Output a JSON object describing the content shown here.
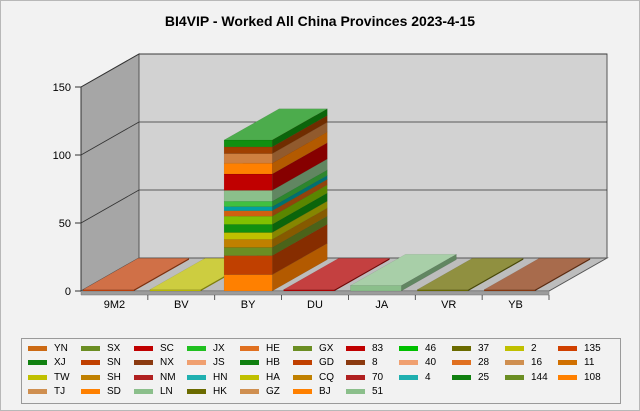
{
  "title": "BI4VIP - Worked All China Provinces 2023-4-15",
  "chart_data": {
    "type": "bar",
    "style": "stacked-3d",
    "title": "BI4VIP - Worked All China Provinces 2023-4-15",
    "xlabel": "",
    "ylabel": "",
    "ylim": [
      0,
      150
    ],
    "yticks": [
      0,
      50,
      100,
      150
    ],
    "grid": true,
    "legend_position": "bottom",
    "categories": [
      "9M2",
      "BV",
      "BY",
      "DU",
      "JA",
      "VR",
      "YB"
    ],
    "category_colors": [
      "#c0400a",
      "#bcbc00",
      null,
      "#b00000",
      "#8bbf8b",
      "#6b6b00",
      "#8b3a10"
    ],
    "category_values": [
      1,
      1,
      null,
      1,
      4,
      1,
      1
    ],
    "by_segments": [
      {
        "color": "#ff8000",
        "value": 12
      },
      {
        "color": "#c04000",
        "value": 14
      },
      {
        "color": "#6b8e23",
        "value": 6
      },
      {
        "color": "#c08000",
        "value": 6
      },
      {
        "color": "#c0c000",
        "value": 5
      },
      {
        "color": "#109010",
        "value": 6
      },
      {
        "color": "#80c000",
        "value": 6
      },
      {
        "color": "#d06010",
        "value": 4
      },
      {
        "color": "#00a0a0",
        "value": 3
      },
      {
        "color": "#40c040",
        "value": 4
      },
      {
        "color": "#8bbf8b",
        "value": 8
      },
      {
        "color": "#c00000",
        "value": 12
      },
      {
        "color": "#ff8000",
        "value": 8
      },
      {
        "color": "#cf8040",
        "value": 7
      },
      {
        "color": "#a04000",
        "value": 5
      },
      {
        "color": "#109010",
        "value": 5
      }
    ],
    "series": [
      {
        "name": "YN",
        "color": "#cc6a14"
      },
      {
        "name": "SX",
        "color": "#6b8e23"
      },
      {
        "name": "SC",
        "color": "#c00000"
      },
      {
        "name": "JX",
        "color": "#20c020"
      },
      {
        "name": "HE",
        "color": "#e07020"
      },
      {
        "name": "GX",
        "color": "#6b8e23"
      },
      {
        "name": "83",
        "color": "#c00000"
      },
      {
        "name": "46",
        "color": "#00c000"
      },
      {
        "name": "37",
        "color": "#6b6b00"
      },
      {
        "name": "2",
        "color": "#c0c000"
      },
      {
        "name": "135",
        "color": "#d04000"
      },
      {
        "name": "XJ",
        "color": "#108010"
      },
      {
        "name": "SN",
        "color": "#c04000"
      },
      {
        "name": "NX",
        "color": "#8b3a10"
      },
      {
        "name": "JS",
        "color": "#f0a070"
      },
      {
        "name": "HB",
        "color": "#108010"
      },
      {
        "name": "GD",
        "color": "#c04000"
      },
      {
        "name": "8",
        "color": "#8b3a10"
      },
      {
        "name": "40",
        "color": "#f0a070"
      },
      {
        "name": "28",
        "color": "#e07020"
      },
      {
        "name": "16",
        "color": "#cf8f50"
      },
      {
        "name": "11",
        "color": "#d07000"
      },
      {
        "name": "TW",
        "color": "#c0c000"
      },
      {
        "name": "SH",
        "color": "#c08000"
      },
      {
        "name": "NM",
        "color": "#b02020"
      },
      {
        "name": "HN",
        "color": "#20b0b0"
      },
      {
        "name": "HA",
        "color": "#c0c000"
      },
      {
        "name": "CQ",
        "color": "#c08000"
      },
      {
        "name": "70",
        "color": "#b02020"
      },
      {
        "name": "4",
        "color": "#20b0b0"
      },
      {
        "name": "25",
        "color": "#108010"
      },
      {
        "name": "144",
        "color": "#6b8e23"
      },
      {
        "name": "108",
        "color": "#ff8000"
      },
      {
        "name": "TJ",
        "color": "#cf8f50"
      },
      {
        "name": "SD",
        "color": "#ff8000"
      },
      {
        "name": "LN",
        "color": "#8bbf8b"
      },
      {
        "name": "HK",
        "color": "#6b6b00"
      },
      {
        "name": "GZ",
        "color": "#cf8f50"
      },
      {
        "name": "BJ",
        "color": "#ff8000"
      },
      {
        "name": "51",
        "color": "#8bbf8b"
      }
    ]
  }
}
